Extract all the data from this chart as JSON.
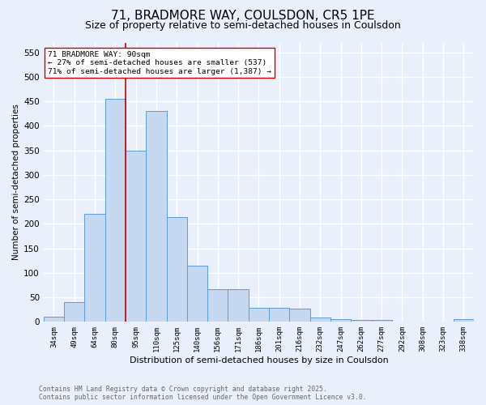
{
  "title1": "71, BRADMORE WAY, COULSDON, CR5 1PE",
  "title2": "Size of property relative to semi-detached houses in Coulsdon",
  "xlabel": "Distribution of semi-detached houses by size in Coulsdon",
  "ylabel": "Number of semi-detached properties",
  "bar_labels": [
    "34sqm",
    "49sqm",
    "64sqm",
    "80sqm",
    "95sqm",
    "110sqm",
    "125sqm",
    "140sqm",
    "156sqm",
    "171sqm",
    "186sqm",
    "201sqm",
    "216sqm",
    "232sqm",
    "247sqm",
    "262sqm",
    "277sqm",
    "292sqm",
    "308sqm",
    "323sqm",
    "338sqm"
  ],
  "bar_values": [
    10,
    40,
    220,
    455,
    350,
    430,
    213,
    115,
    67,
    67,
    29,
    28,
    27,
    8,
    5,
    4,
    4,
    0,
    0,
    0,
    5
  ],
  "bar_color": "#c5d8f0",
  "bar_edge_color": "#5b9bd5",
  "vline_x_index": 3.5,
  "annotation_title": "71 BRADMORE WAY: 90sqm",
  "annotation_line1": "← 27% of semi-detached houses are smaller (537)",
  "annotation_line2": "71% of semi-detached houses are larger (1,387) →",
  "vline_color": "#cc0000",
  "annotation_box_color": "#ffffff",
  "annotation_box_edge": "#cc0000",
  "ylim": [
    0,
    570
  ],
  "yticks": [
    0,
    50,
    100,
    150,
    200,
    250,
    300,
    350,
    400,
    450,
    500,
    550
  ],
  "footer_line1": "Contains HM Land Registry data © Crown copyright and database right 2025.",
  "footer_line2": "Contains public sector information licensed under the Open Government Licence v3.0.",
  "bg_color": "#eaf0fb",
  "grid_color": "#ffffff",
  "title1_fontsize": 11,
  "title2_fontsize": 9
}
